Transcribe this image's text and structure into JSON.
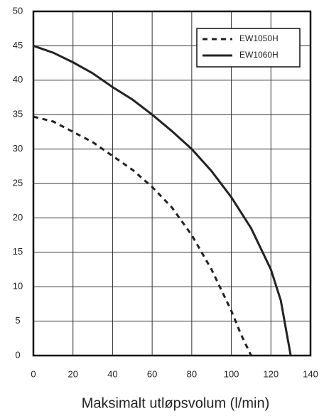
{
  "chart_data": {
    "type": "line",
    "x_label": "Maksimalt utløpsvolum (l/min)",
    "xlim": [
      0,
      140
    ],
    "xticks": [
      0,
      20,
      40,
      60,
      80,
      100,
      120,
      140
    ],
    "ylim": [
      0,
      50
    ],
    "yticks": [
      0,
      5,
      10,
      15,
      20,
      25,
      30,
      35,
      40,
      45,
      50
    ],
    "grid": true,
    "legend": "upper right",
    "series": [
      {
        "name": "EW1050H",
        "color": "#222222",
        "style": "dashed",
        "x": [
          0,
          10,
          20,
          30,
          40,
          50,
          60,
          70,
          80,
          90,
          100,
          105,
          110
        ],
        "values": [
          34.7,
          34,
          32.5,
          31,
          29,
          27,
          24.5,
          21.5,
          17.5,
          12.5,
          6.5,
          3,
          0
        ]
      },
      {
        "name": "EW1060H",
        "color": "#222222",
        "style": "solid",
        "x": [
          0,
          10,
          20,
          30,
          40,
          50,
          60,
          70,
          80,
          90,
          100,
          110,
          120,
          125,
          130
        ],
        "values": [
          45,
          44,
          42.6,
          41,
          39,
          37.2,
          35,
          32.6,
          30,
          26.8,
          23,
          18.5,
          12.5,
          8,
          0
        ]
      }
    ]
  }
}
